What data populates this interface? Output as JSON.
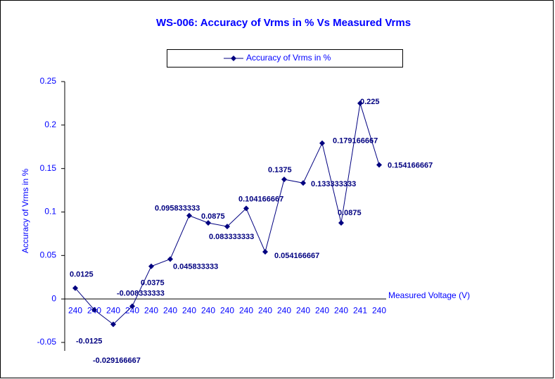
{
  "chart_data": {
    "type": "line",
    "title": "WS-006: Accuracy of Vrms in % Vs Measured Vrms",
    "x_label": "Measured Voltage (V)",
    "y_label": "Accuracy of Vrms in %",
    "categories": [
      "240",
      "240",
      "240",
      "240",
      "240",
      "240",
      "240",
      "240",
      "240",
      "240",
      "240",
      "240",
      "240",
      "240",
      "240",
      "241",
      "240"
    ],
    "series": [
      {
        "name": "Accuracy of Vrms in %",
        "color": "#000080",
        "values": [
          0.0125,
          -0.0125,
          -0.029166667,
          -0.008333333,
          0.0375,
          0.045833333,
          0.095833333,
          0.0875,
          0.083333333,
          0.104166667,
          0.054166667,
          0.1375,
          0.133333333,
          0.179166667,
          0.0875,
          0.225,
          0.154166667
        ]
      }
    ],
    "ylim": [
      -0.05,
      0.25
    ],
    "yticks": [
      -0.05,
      0,
      0.05,
      0.1,
      0.15,
      0.2,
      0.25
    ],
    "legend": "top"
  }
}
